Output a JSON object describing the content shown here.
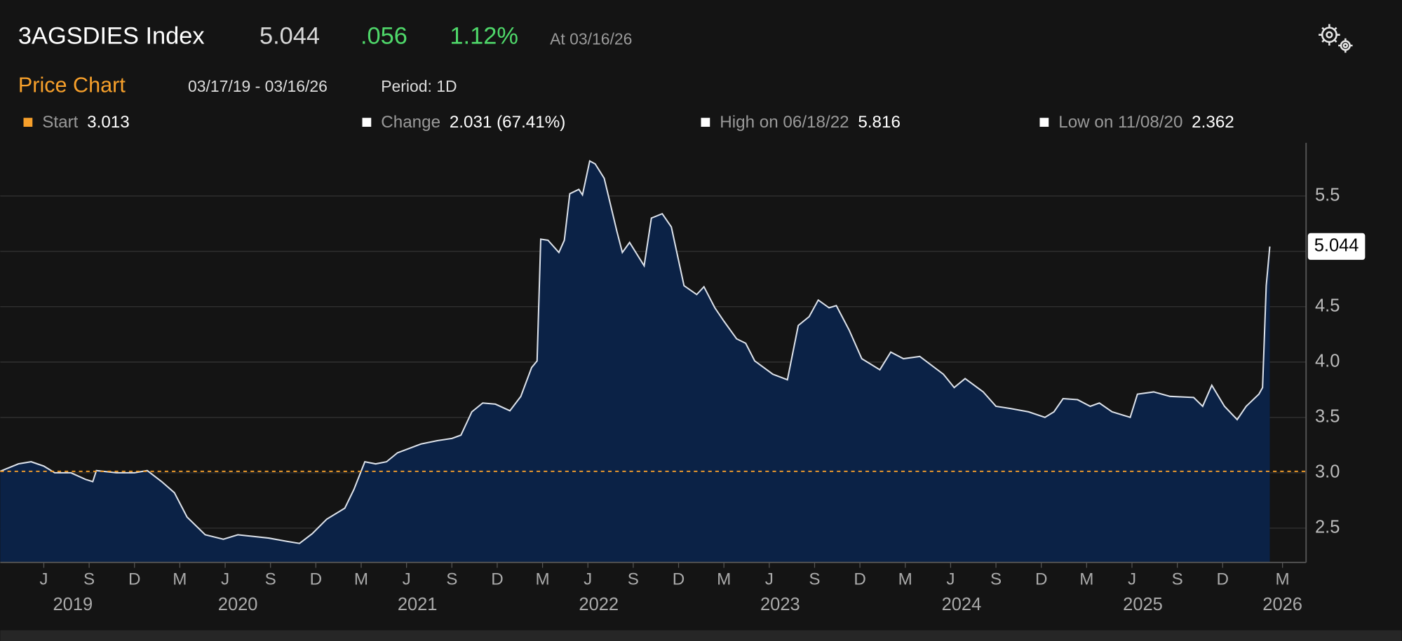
{
  "header": {
    "ticker": "3AGSDIES Index",
    "change": ".056",
    "change_pct": "1.12%",
    "as_of": "At 03/16/26",
    "section": "Price Chart",
    "range": "03/17/19 - 03/16/26",
    "period": "Period: 1D"
  },
  "chart_data": {
    "type": "area",
    "stats": [
      {
        "label": "Start",
        "value": 3.013,
        "color": "#f7a02b"
      },
      {
        "label": "Change",
        "value": "2.031 (67.41%)",
        "color": "#ffffff"
      },
      {
        "label": "High on 06/18/22",
        "value": 5.816,
        "color": "#ffffff"
      },
      {
        "label": "Low on 11/08/20",
        "value": 2.362,
        "color": "#ffffff"
      }
    ],
    "series": [
      {
        "color": "#dde2ea",
        "fill": "#0b2246",
        "x": [
          2019.21,
          2019.31,
          2019.38,
          2019.45,
          2019.51,
          2019.6,
          2019.68,
          2019.72,
          2019.74,
          2019.85,
          2019.95,
          2020.02,
          2020.1,
          2020.17,
          2020.24,
          2020.34,
          2020.44,
          2020.52,
          2020.69,
          2020.79,
          2020.86,
          2020.93,
          2021.01,
          2021.11,
          2021.16,
          2021.22,
          2021.28,
          2021.34,
          2021.4,
          2021.53,
          2021.62,
          2021.7,
          2021.75,
          2021.81,
          2021.87,
          2021.94,
          2022.02,
          2022.08,
          2022.14,
          2022.17,
          2022.19,
          2022.23,
          2022.29,
          2022.32,
          2022.35,
          2022.4,
          2022.42,
          2022.46,
          2022.49,
          2022.54,
          2022.61,
          2022.64,
          2022.68,
          2022.76,
          2022.8,
          2022.86,
          2022.91,
          2022.98,
          2023.05,
          2023.09,
          2023.15,
          2023.2,
          2023.27,
          2023.32,
          2023.37,
          2023.47,
          2023.55,
          2023.61,
          2023.67,
          2023.72,
          2023.78,
          2023.82,
          2023.89,
          2023.96,
          2024.06,
          2024.12,
          2024.19,
          2024.28,
          2024.41,
          2024.47,
          2024.53,
          2024.63,
          2024.7,
          2024.78,
          2024.88,
          2024.97,
          2025.02,
          2025.07,
          2025.15,
          2025.22,
          2025.27,
          2025.34,
          2025.44,
          2025.48,
          2025.57,
          2025.66,
          2025.79,
          2025.84,
          2025.89,
          2025.96,
          2026.03,
          2026.08,
          2026.15,
          2026.17,
          2026.19,
          2026.21
        ],
        "values": [
          3.013,
          3.08,
          3.1,
          3.06,
          3.0,
          3.0,
          2.94,
          2.92,
          3.02,
          3.0,
          3.0,
          3.02,
          2.92,
          2.82,
          2.6,
          2.44,
          2.4,
          2.44,
          2.41,
          2.38,
          2.362,
          2.45,
          2.58,
          2.68,
          2.85,
          3.1,
          3.08,
          3.1,
          3.18,
          3.26,
          3.29,
          3.31,
          3.34,
          3.55,
          3.63,
          3.62,
          3.56,
          3.69,
          3.95,
          4.01,
          5.11,
          5.1,
          4.99,
          5.1,
          5.52,
          5.56,
          5.51,
          5.816,
          5.79,
          5.66,
          5.18,
          4.99,
          5.08,
          4.87,
          5.3,
          5.34,
          5.22,
          4.69,
          4.61,
          4.68,
          4.49,
          4.37,
          4.21,
          4.17,
          4.01,
          3.89,
          3.84,
          4.33,
          4.41,
          4.56,
          4.49,
          4.51,
          4.29,
          4.03,
          3.93,
          4.09,
          4.03,
          4.05,
          3.89,
          3.77,
          3.85,
          3.73,
          3.6,
          3.58,
          3.55,
          3.5,
          3.55,
          3.67,
          3.66,
          3.6,
          3.63,
          3.55,
          3.5,
          3.71,
          3.73,
          3.69,
          3.68,
          3.6,
          3.79,
          3.6,
          3.48,
          3.6,
          3.71,
          3.77,
          4.69,
          5.044
        ]
      }
    ],
    "xlim": [
      2019.21,
      2026.41
    ],
    "ylim": [
      2.19,
      5.98
    ],
    "yticks": [
      2.5,
      {
        "value": 3,
        "label": "3.0"
      },
      3.5,
      {
        "value": 4,
        "label": "4.0"
      },
      4.5,
      {
        "value": 5,
        "label": "5.0"
      },
      5.5
    ],
    "xticks": [
      {
        "value": 2019.45,
        "label": "J"
      },
      {
        "value": 2019.7,
        "label": "S"
      },
      {
        "value": 2019.95,
        "label": "D"
      },
      {
        "value": 2020.2,
        "label": "M"
      },
      {
        "value": 2020.45,
        "label": "J"
      },
      {
        "value": 2020.7,
        "label": "S"
      },
      {
        "value": 2020.95,
        "label": "D"
      },
      {
        "value": 2021.2,
        "label": "M"
      },
      {
        "value": 2021.45,
        "label": "J"
      },
      {
        "value": 2021.7,
        "label": "S"
      },
      {
        "value": 2021.95,
        "label": "D"
      },
      {
        "value": 2022.2,
        "label": "M"
      },
      {
        "value": 2022.45,
        "label": "J"
      },
      {
        "value": 2022.7,
        "label": "S"
      },
      {
        "value": 2022.95,
        "label": "D"
      },
      {
        "value": 2023.2,
        "label": "M"
      },
      {
        "value": 2023.45,
        "label": "J"
      },
      {
        "value": 2023.7,
        "label": "S"
      },
      {
        "value": 2023.95,
        "label": "D"
      },
      {
        "value": 2024.2,
        "label": "M"
      },
      {
        "value": 2024.45,
        "label": "J"
      },
      {
        "value": 2024.7,
        "label": "S"
      },
      {
        "value": 2024.95,
        "label": "D"
      },
      {
        "value": 2025.2,
        "label": "M"
      },
      {
        "value": 2025.45,
        "label": "J"
      },
      {
        "value": 2025.7,
        "label": "S"
      },
      {
        "value": 2025.95,
        "label": "D"
      },
      {
        "value": 2026.28,
        "label": "M"
      }
    ],
    "year_labels": [
      {
        "value": 2019.61,
        "label": "2019"
      },
      {
        "value": 2020.52,
        "label": "2020"
      },
      {
        "value": 2021.51,
        "label": "2021"
      },
      {
        "value": 2022.51,
        "label": "2022"
      },
      {
        "value": 2023.51,
        "label": "2023"
      },
      {
        "value": 2024.51,
        "label": "2024"
      },
      {
        "value": 2025.51,
        "label": "2025"
      },
      {
        "value": 2026.28,
        "label": "2026"
      }
    ],
    "grid": true
  }
}
